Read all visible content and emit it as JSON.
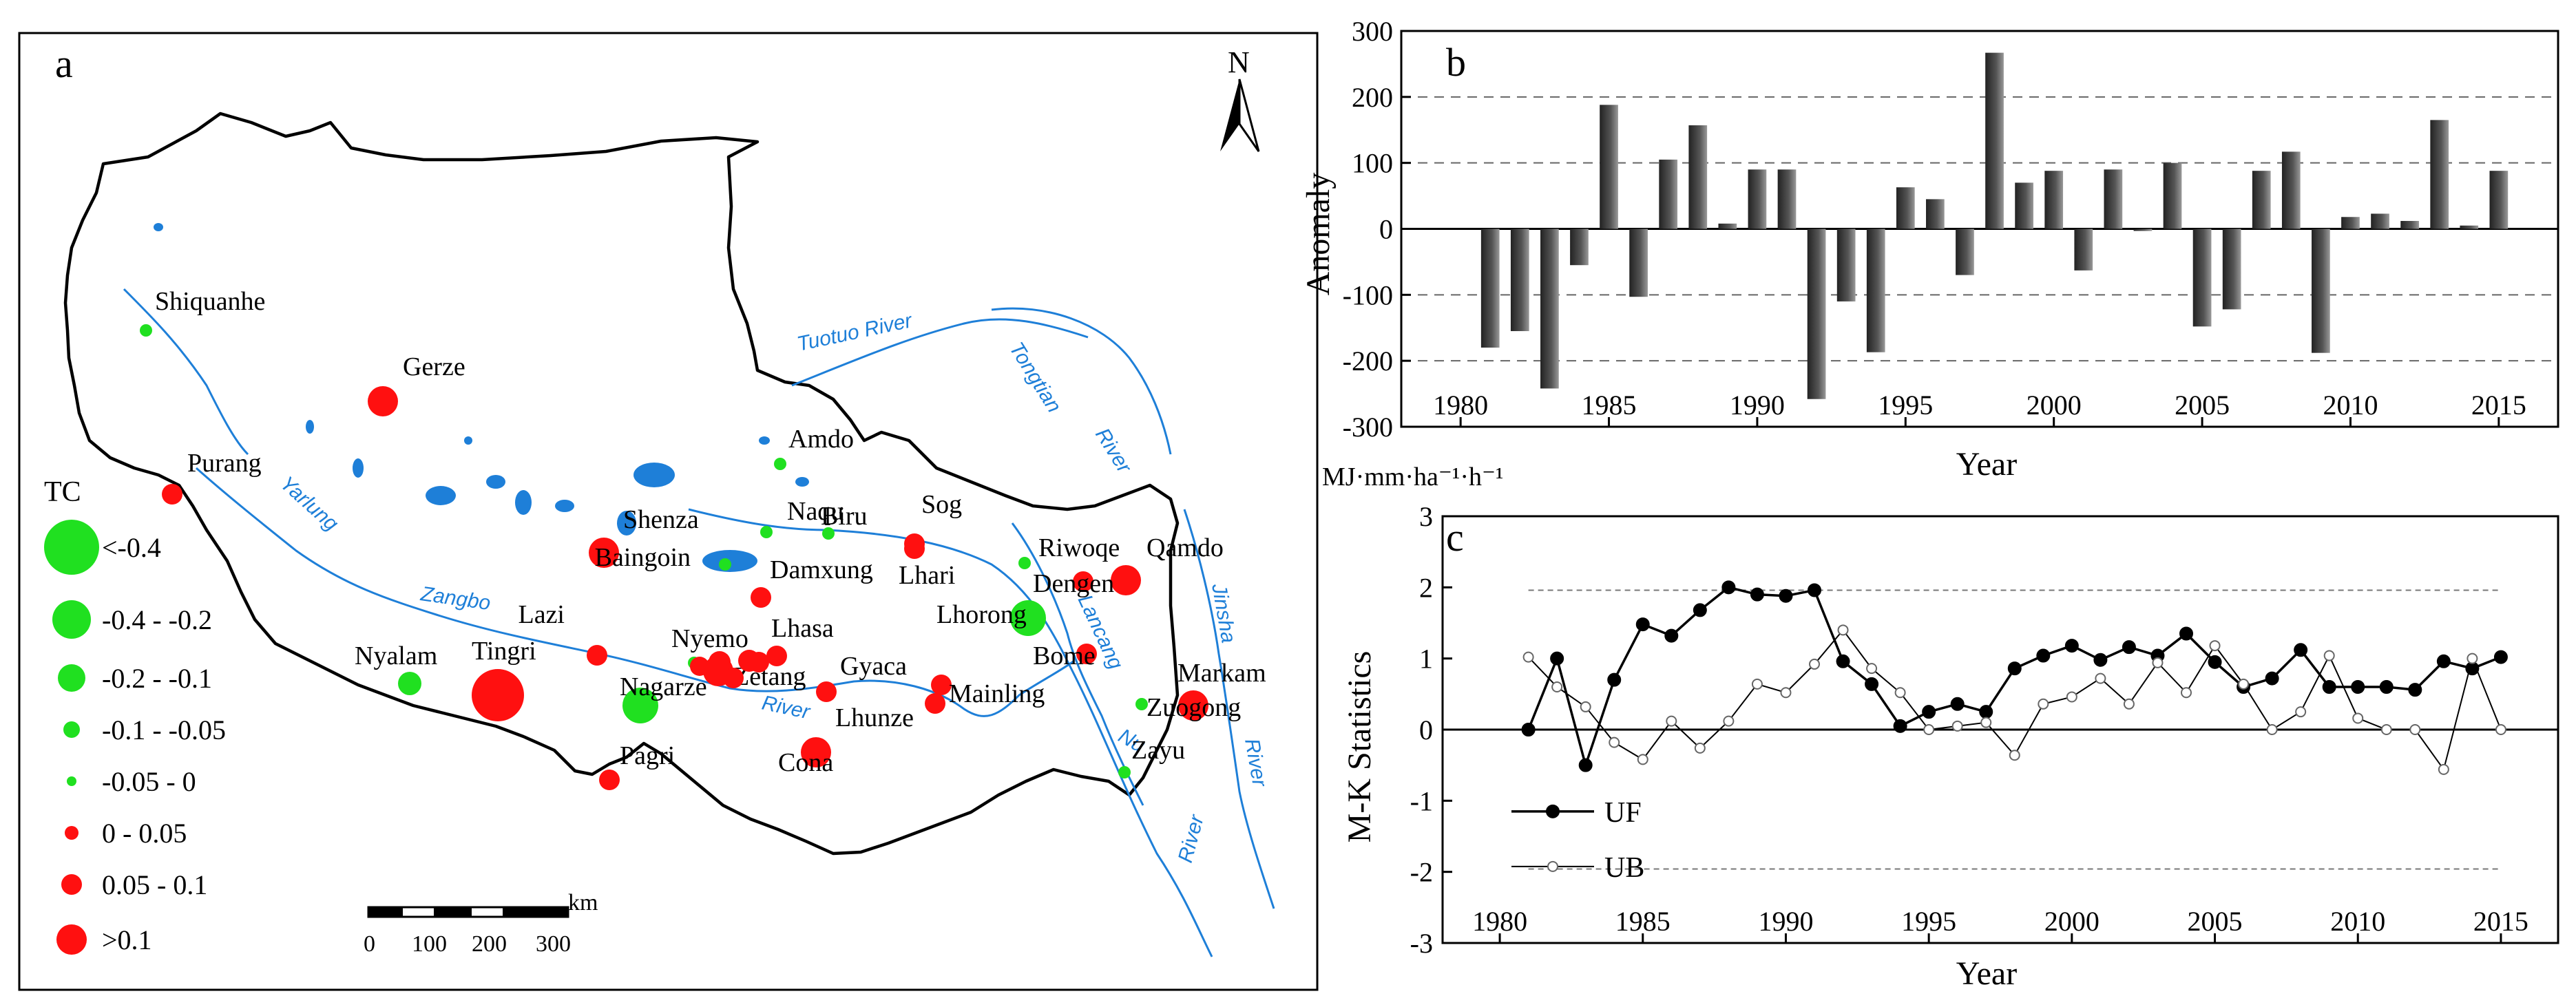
{
  "panels": {
    "a": "a",
    "b": "b",
    "c": "c"
  },
  "map": {
    "north_label": "N",
    "legend_title": "TC",
    "legend": [
      {
        "label": "<-0.4",
        "color": "#20e020",
        "size": 7
      },
      {
        "label": "-0.4 - -0.2",
        "color": "#20e020",
        "size": 6
      },
      {
        "label": "-0.2 - -0.1",
        "color": "#20e020",
        "size": 5
      },
      {
        "label": "-0.1 - -0.05",
        "color": "#20e020",
        "size": 4
      },
      {
        "label": "-0.05 - 0",
        "color": "#20e020",
        "size": 3
      },
      {
        "label": "0 - 0.05",
        "color": "#ff1010",
        "size": 4
      },
      {
        "label": "0.05 - 0.1",
        "color": "#ff1010",
        "size": 5
      },
      {
        "label": ">0.1",
        "color": "#ff1010",
        "size": 6
      }
    ],
    "scalebar": {
      "unit": "km",
      "ticks": [
        "0",
        "100",
        "200",
        "300"
      ]
    },
    "rivers": [
      "Tuotuo River",
      "Tongtian",
      "River",
      "Yarlung",
      "Zangbo",
      "River",
      "Lancang",
      "Jinsha",
      "River",
      "Nu",
      "River"
    ],
    "stations": [
      {
        "name": "Shiquanhe",
        "class": 4
      },
      {
        "name": "Gerze",
        "class": 7
      },
      {
        "name": "Purang",
        "class": 6
      },
      {
        "name": "Amdo",
        "class": 4
      },
      {
        "name": "Naqu",
        "class": 4
      },
      {
        "name": "Biru",
        "class": 4
      },
      {
        "name": "Sog",
        "class": 6
      },
      {
        "name": "Shenza",
        "class": 7
      },
      {
        "name": "Baingoin",
        "class": 4
      },
      {
        "name": "Damxung",
        "class": 6
      },
      {
        "name": "Lhari",
        "class": 6
      },
      {
        "name": "Riwoqe",
        "class": 4
      },
      {
        "name": "Qamdo",
        "class": 7
      },
      {
        "name": "Dengen",
        "class": 6
      },
      {
        "name": "Lhorong",
        "class": 2
      },
      {
        "name": "Lazi",
        "class": 6
      },
      {
        "name": "Nyemo",
        "class": 4
      },
      {
        "name": "Lhasa",
        "class": 6
      },
      {
        "name": "Nyalam",
        "class": 3
      },
      {
        "name": "Tingri",
        "class": 8
      },
      {
        "name": "Nagarze",
        "class": 2
      },
      {
        "name": "Zetang",
        "class": 7
      },
      {
        "name": "Gyaca",
        "class": 6
      },
      {
        "name": "Bome",
        "class": 6
      },
      {
        "name": "Markam",
        "class": 7
      },
      {
        "name": "Mainling",
        "class": 6
      },
      {
        "name": "Lhunze",
        "class": 6
      },
      {
        "name": "Zuogong",
        "class": 4
      },
      {
        "name": "Zayu",
        "class": 4
      },
      {
        "name": "Pagri",
        "class": 6
      },
      {
        "name": "Cona",
        "class": 7
      }
    ]
  },
  "chart_data": [
    {
      "type": "bar",
      "title": "",
      "xlabel": "Year",
      "ylabel": "Anomaly",
      "unit_label": "MJ·mm·ha⁻¹·h⁻¹",
      "xlim": [
        1978,
        2017
      ],
      "ylim": [
        -300,
        300
      ],
      "xticks": [
        "1980",
        "1985",
        "1990",
        "1995",
        "2000",
        "2005",
        "2010",
        "2015"
      ],
      "yticks": [
        "-300",
        "-200",
        "-100",
        "0",
        "100",
        "200",
        "300"
      ],
      "reference_lines": [
        -200,
        -100,
        100,
        200
      ],
      "x": [
        1981,
        1982,
        1983,
        1984,
        1985,
        1986,
        1987,
        1988,
        1989,
        1990,
        1991,
        1992,
        1993,
        1994,
        1995,
        1996,
        1997,
        1998,
        1999,
        2000,
        2001,
        2002,
        2003,
        2004,
        2005,
        2006,
        2007,
        2008,
        2009,
        2010,
        2011,
        2012,
        2013,
        2014,
        2015
      ],
      "values": [
        -180,
        -155,
        -242,
        -55,
        188,
        -103,
        105,
        157,
        8,
        90,
        90,
        -258,
        -110,
        -187,
        63,
        45,
        -70,
        267,
        70,
        88,
        -63,
        90,
        0,
        100,
        -148,
        -122,
        88,
        117,
        -188,
        18,
        23,
        12,
        165,
        5,
        88
      ]
    },
    {
      "type": "line",
      "title": "",
      "xlabel": "Year",
      "ylabel": "M-K Statistics",
      "xlim": [
        1978,
        2017
      ],
      "ylim": [
        -3,
        3
      ],
      "xticks": [
        "1980",
        "1985",
        "1990",
        "1995",
        "2000",
        "2005",
        "2010",
        "2015"
      ],
      "yticks": [
        "-3",
        "-2",
        "-1",
        "0",
        "1",
        "2",
        "3"
      ],
      "reference_lines": [
        -1.96,
        1.96
      ],
      "x": [
        1981,
        1982,
        1983,
        1984,
        1985,
        1986,
        1987,
        1988,
        1989,
        1990,
        1991,
        1992,
        1993,
        1994,
        1995,
        1996,
        1997,
        1998,
        1999,
        2000,
        2001,
        2002,
        2003,
        2004,
        2005,
        2006,
        2007,
        2008,
        2009,
        2010,
        2011,
        2012,
        2013,
        2014,
        2015
      ],
      "series": [
        {
          "name": "UF",
          "marker": "filled",
          "values": [
            0,
            1.0,
            -0.5,
            0.7,
            1.48,
            1.32,
            1.68,
            2.0,
            1.9,
            1.88,
            1.96,
            0.96,
            0.64,
            0.05,
            0.25,
            0.36,
            0.25,
            0.86,
            1.04,
            1.18,
            0.98,
            1.16,
            1.04,
            1.35,
            0.95,
            0.6,
            0.72,
            1.12,
            0.6,
            0.6,
            0.6,
            0.56,
            0.96,
            0.86,
            1.02
          ]
        },
        {
          "name": "UB",
          "marker": "open",
          "values": [
            1.02,
            0.6,
            0.32,
            -0.18,
            -0.42,
            0.12,
            -0.26,
            0.12,
            0.64,
            0.52,
            0.92,
            1.4,
            0.86,
            0.52,
            0.0,
            0.05,
            0.1,
            -0.36,
            0.36,
            0.46,
            0.72,
            0.36,
            0.94,
            0.52,
            1.18,
            0.64,
            0.0,
            0.25,
            1.04,
            0.16,
            0.0,
            0.0,
            -0.56,
            1.0,
            0.0
          ]
        }
      ]
    }
  ]
}
